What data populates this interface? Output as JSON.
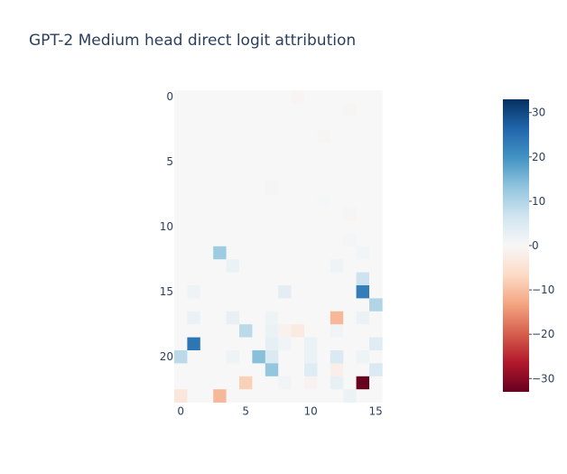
{
  "chart_data": {
    "type": "heatmap",
    "title": "GPT-2 Medium head direct logit attribution",
    "xlabel": "",
    "ylabel": "",
    "rows": 24,
    "cols": 16,
    "x_ticks": [
      0,
      5,
      10,
      15
    ],
    "y_ticks": [
      0,
      5,
      10,
      15,
      20
    ],
    "colorbar": {
      "min": -33,
      "max": 33,
      "ticks": [
        30,
        20,
        10,
        0,
        -10,
        -20,
        -30
      ],
      "tick_labels": [
        "30",
        "20",
        "10",
        "0",
        "−10",
        "−20",
        "−30"
      ],
      "colorscale": "RdBu",
      "stops": [
        "#67001f",
        "#b2182b",
        "#d6604d",
        "#f4a582",
        "#fddbc7",
        "#f7f7f7",
        "#d1e5f0",
        "#92c5de",
        "#4393c3",
        "#2166ac",
        "#053061"
      ]
    },
    "cells": [
      {
        "row": 0,
        "col": 9,
        "value": -0.6
      },
      {
        "row": 1,
        "col": 13,
        "value": -0.5
      },
      {
        "row": 3,
        "col": 11,
        "value": -0.4
      },
      {
        "row": 7,
        "col": 7,
        "value": -0.5
      },
      {
        "row": 8,
        "col": 11,
        "value": 0.4
      },
      {
        "row": 9,
        "col": 13,
        "value": -0.4
      },
      {
        "row": 11,
        "col": 13,
        "value": 0.6
      },
      {
        "row": 12,
        "col": 3,
        "value": 12
      },
      {
        "row": 12,
        "col": 14,
        "value": 0.8
      },
      {
        "row": 13,
        "col": 4,
        "value": 2
      },
      {
        "row": 13,
        "col": 12,
        "value": 1.5
      },
      {
        "row": 14,
        "col": 14,
        "value": 7
      },
      {
        "row": 15,
        "col": 1,
        "value": 1.5
      },
      {
        "row": 15,
        "col": 8,
        "value": 3.5
      },
      {
        "row": 15,
        "col": 14,
        "value": 23
      },
      {
        "row": 16,
        "col": 15,
        "value": 10
      },
      {
        "row": 17,
        "col": 1,
        "value": 2
      },
      {
        "row": 17,
        "col": 4,
        "value": 2.5
      },
      {
        "row": 17,
        "col": 7,
        "value": 1.5
      },
      {
        "row": 17,
        "col": 12,
        "value": -11
      },
      {
        "row": 17,
        "col": 14,
        "value": 2
      },
      {
        "row": 18,
        "col": 5,
        "value": 9
      },
      {
        "row": 18,
        "col": 7,
        "value": 2
      },
      {
        "row": 18,
        "col": 8,
        "value": -1.5
      },
      {
        "row": 18,
        "col": 9,
        "value": -3
      },
      {
        "row": 18,
        "col": 12,
        "value": 1
      },
      {
        "row": 19,
        "col": 1,
        "value": 24
      },
      {
        "row": 19,
        "col": 7,
        "value": 3
      },
      {
        "row": 19,
        "col": 8,
        "value": 1
      },
      {
        "row": 19,
        "col": 10,
        "value": 2
      },
      {
        "row": 19,
        "col": 15,
        "value": 4
      },
      {
        "row": 20,
        "col": 0,
        "value": 9
      },
      {
        "row": 20,
        "col": 4,
        "value": 1.5
      },
      {
        "row": 20,
        "col": 6,
        "value": 14
      },
      {
        "row": 20,
        "col": 7,
        "value": 5
      },
      {
        "row": 20,
        "col": 10,
        "value": 2
      },
      {
        "row": 20,
        "col": 12,
        "value": 5
      },
      {
        "row": 20,
        "col": 14,
        "value": 1.5
      },
      {
        "row": 21,
        "col": 7,
        "value": 13
      },
      {
        "row": 21,
        "col": 10,
        "value": 4
      },
      {
        "row": 21,
        "col": 12,
        "value": -2
      },
      {
        "row": 21,
        "col": 15,
        "value": 5
      },
      {
        "row": 22,
        "col": 5,
        "value": -8
      },
      {
        "row": 22,
        "col": 8,
        "value": 1
      },
      {
        "row": 22,
        "col": 10,
        "value": -1
      },
      {
        "row": 22,
        "col": 12,
        "value": 2.5
      },
      {
        "row": 22,
        "col": 14,
        "value": -33
      },
      {
        "row": 23,
        "col": 0,
        "value": -4
      },
      {
        "row": 23,
        "col": 3,
        "value": -11
      },
      {
        "row": 23,
        "col": 13,
        "value": 2
      }
    ]
  }
}
